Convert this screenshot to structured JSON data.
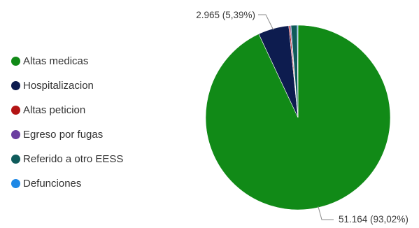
{
  "chart_data": {
    "type": "pie",
    "title": "",
    "legend_position": "left",
    "slices": [
      {
        "label": "Altas medicas",
        "value": 51164,
        "percent": 93.02,
        "color": "#118a17"
      },
      {
        "label": "Hospitalizacion",
        "value": 2965,
        "percent": 5.39,
        "color": "#0d1c4f"
      },
      {
        "label": "Altas peticion",
        "value": 120,
        "percent": 0.22,
        "color": "#b31414"
      },
      {
        "label": "Egreso por fugas",
        "value": 90,
        "percent": 0.16,
        "color": "#6b3fa0"
      },
      {
        "label": "Referido a otro EESS",
        "value": 600,
        "percent": 1.09,
        "color": "#0f5b5b"
      },
      {
        "label": "Defunciones",
        "value": 70,
        "percent": 0.12,
        "color": "#1e88e5"
      }
    ],
    "data_labels": [
      {
        "slice": 1,
        "text": "2.965 (5,39%)"
      },
      {
        "slice": 0,
        "text": "51.164 (93,02%)"
      }
    ]
  }
}
